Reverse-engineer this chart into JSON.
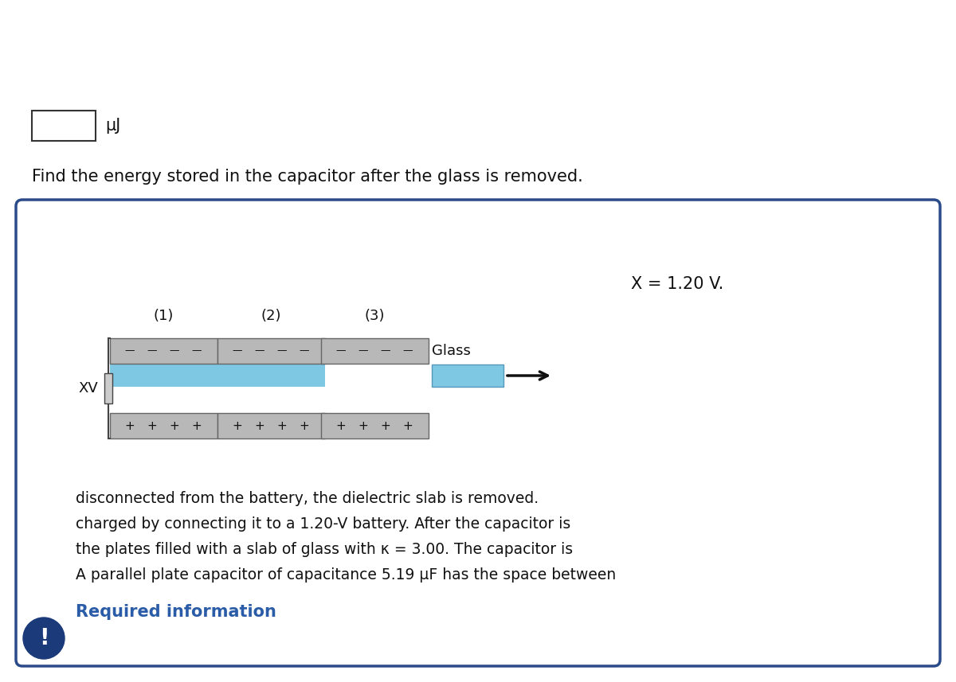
{
  "bg_color": "#ffffff",
  "box_border": "#2a4a8a",
  "box_bg": "#ffffff",
  "title": "Required information",
  "title_color": "#2a5ca8",
  "body_line1": "A parallel plate capacitor of capacitance 5.19 μF has the space between",
  "body_line2": "the plates filled with a slab of glass with κ = 3.00. The capacitor is",
  "body_line3": "charged by connecting it to a 1.20-V battery. After the capacitor is",
  "body_line4": "disconnected from the battery, the dielectric slab is removed.",
  "question_text": "Find the energy stored in the capacitor after the glass is removed.",
  "unit_text": "μJ",
  "xv_label": "XV",
  "glass_label": "Glass",
  "x_label": "X = 1.20 V.",
  "cap_labels": [
    "(1)",
    "(2)",
    "(3)"
  ],
  "plate_color": "#b8b8b8",
  "plate_edge": "#666666",
  "dielectric_color": "#7ec8e3",
  "dielectric_edge": "#5599bb",
  "text_color": "#111111",
  "icon_bg": "#1a3a7a",
  "icon_text": "!",
  "icon_text_color": "#ffffff",
  "input_box_edge": "#333333",
  "battery_color": "#aaaaaa",
  "arrow_color": "#111111"
}
